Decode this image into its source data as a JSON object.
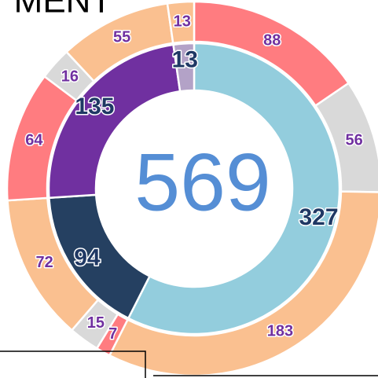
{
  "chart_data": {
    "type": "donut",
    "title": "MENT",
    "total": 569,
    "total_color": "#558ED5",
    "rings": [
      {
        "values": [
          327,
          94,
          135,
          13
        ],
        "colors": [
          "#93CDDD",
          "#254061",
          "#7030A0",
          "#B3A2C7"
        ],
        "label_color": "#1F3864"
      },
      {
        "values": [
          88,
          56,
          183,
          7,
          15,
          72,
          64,
          16,
          55,
          13
        ],
        "colors": [
          "#FF7C80",
          "#D9D9D9",
          "#FAC090",
          "#FF7C80",
          "#D9D9D9",
          "#FAC090",
          "#FF7C80",
          "#D9D9D9",
          "#FAC090",
          "#FAC090"
        ],
        "label_color": "#7030A0"
      }
    ]
  }
}
